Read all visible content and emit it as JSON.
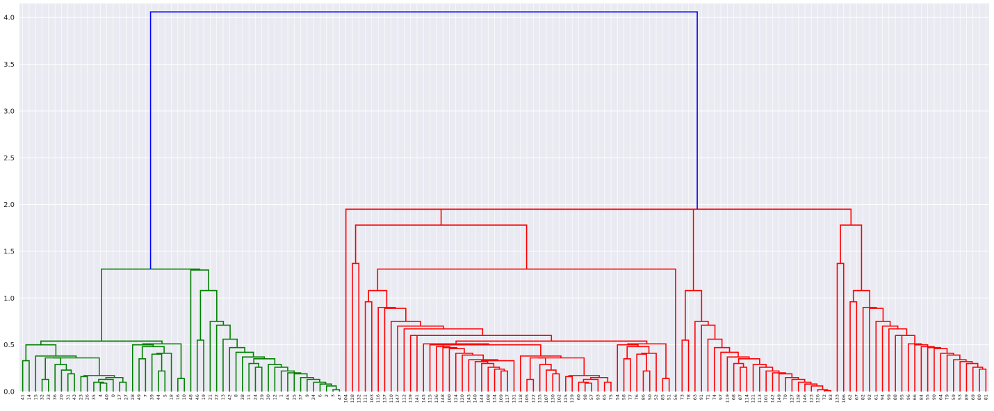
{
  "chart_data": {
    "type": "dendrogram",
    "title": "",
    "xlabel": "",
    "ylabel": "",
    "ylim": [
      0,
      4.15
    ],
    "yticks": [
      "0.0",
      "0.5",
      "1.0",
      "1.5",
      "2.0",
      "2.5",
      "3.0",
      "3.5",
      "4.0"
    ],
    "grid": true,
    "leaf_order": [
      "41",
      "14",
      "15",
      "32",
      "33",
      "36",
      "20",
      "31",
      "43",
      "23",
      "26",
      "35",
      "4",
      "40",
      "0",
      "17",
      "27",
      "28",
      "49",
      "7",
      "39",
      "44",
      "5",
      "18",
      "16",
      "10",
      "48",
      "46",
      "19",
      "21",
      "22",
      "13",
      "42",
      "8",
      "38",
      "11",
      "24",
      "29",
      "30",
      "12",
      "1",
      "45",
      "25",
      "37",
      "9",
      "34",
      "6",
      "2",
      "3",
      "47",
      "104",
      "128",
      "132",
      "111",
      "103",
      "116",
      "137",
      "110",
      "147",
      "112",
      "139",
      "141",
      "145",
      "115",
      "136",
      "148",
      "100",
      "124",
      "120",
      "143",
      "140",
      "144",
      "108",
      "134",
      "109",
      "117",
      "131",
      "118",
      "105",
      "122",
      "135",
      "107",
      "130",
      "102",
      "125",
      "129",
      "60",
      "98",
      "57",
      "93",
      "65",
      "75",
      "54",
      "58",
      "77",
      "76",
      "86",
      "50",
      "52",
      "85",
      "51",
      "56",
      "73",
      "78",
      "63",
      "91",
      "71",
      "74",
      "97",
      "119",
      "68",
      "87",
      "114",
      "121",
      "113",
      "101",
      "142",
      "149",
      "70",
      "127",
      "138",
      "146",
      "123",
      "126",
      "72",
      "83",
      "133",
      "106",
      "62",
      "67",
      "82",
      "92",
      "61",
      "94",
      "99",
      "88",
      "95",
      "96",
      "66",
      "84",
      "55",
      "90",
      "64",
      "79",
      "59",
      "53",
      "89",
      "69",
      "80",
      "81"
    ],
    "links": [
      {
        "pair": [
          0,
          1
        ],
        "height": 0.33,
        "group": "green"
      },
      {
        "pair": [
          2,
          3
        ],
        "height": 0.5,
        "group": "green"
      },
      {
        "pair": [
          4,
          5
        ],
        "height": 0.38,
        "group": "green"
      },
      {
        "pair": [
          6,
          7
        ],
        "height": 0.13,
        "group": "green"
      },
      {
        "pair": [
          8,
          9
        ],
        "height": 0.36,
        "group": "green"
      },
      {
        "pair": [
          10,
          11
        ],
        "height": 0.29,
        "group": "green"
      },
      {
        "pair": [
          12,
          13
        ],
        "height": 0.23,
        "group": "green"
      },
      {
        "pair": [
          14,
          15
        ],
        "height": 0.19,
        "group": "green"
      },
      {
        "pair": [
          16,
          17
        ],
        "height": 0.36,
        "group": "green"
      },
      {
        "pair": [
          18,
          19
        ],
        "height": 0.16,
        "group": "green"
      },
      {
        "pair": [
          20,
          21
        ],
        "height": 0.17,
        "group": "green"
      },
      {
        "pair": [
          22,
          23
        ],
        "height": 0.1,
        "group": "green"
      },
      {
        "pair": [
          24,
          25
        ],
        "height": 0.09,
        "group": "green"
      },
      {
        "pair": [
          26,
          27
        ],
        "height": 0.13,
        "group": "green"
      },
      {
        "pair": [
          28,
          29
        ],
        "height": 0.15,
        "group": "green"
      },
      {
        "pair": [
          30,
          31
        ],
        "height": 0.1,
        "group": "green"
      },
      {
        "pair": [
          32,
          33
        ],
        "height": 0.54,
        "group": "green"
      },
      {
        "pair": [
          34,
          35
        ],
        "height": 0.5,
        "group": "green"
      },
      {
        "pair": [
          36,
          37
        ],
        "height": 0.35,
        "group": "green"
      },
      {
        "pair": [
          38,
          39
        ],
        "height": 0.48,
        "group": "green"
      },
      {
        "pair": [
          40,
          41
        ],
        "height": 0.4,
        "group": "green"
      },
      {
        "pair": [
          42,
          43
        ],
        "height": 0.22,
        "group": "green"
      },
      {
        "pair": [
          44,
          45
        ],
        "height": 0.41,
        "group": "green"
      },
      {
        "pair": [
          46,
          47
        ],
        "height": 0.51,
        "group": "green"
      },
      {
        "pair": [
          48,
          49
        ],
        "height": 0.14,
        "group": "green"
      },
      {
        "pair": [
          50,
          51
        ],
        "height": 1.31,
        "group": "blue"
      },
      {
        "pair": [
          52,
          53
        ],
        "height": 4.06,
        "group": "blue"
      },
      {
        "pair": [
          54,
          55
        ],
        "height": 0.55,
        "group": "green"
      },
      {
        "pair": [
          56,
          57
        ],
        "height": 1.08,
        "group": "green"
      },
      {
        "pair": [
          58,
          59
        ],
        "height": 0.75,
        "group": "green"
      },
      {
        "pair": [
          60,
          61
        ],
        "height": 0.71,
        "group": "green"
      },
      {
        "pair": [
          62,
          63
        ],
        "height": 0.56,
        "group": "green"
      },
      {
        "pair": [
          64,
          65
        ],
        "height": 0.47,
        "group": "green"
      },
      {
        "pair": [
          66,
          67
        ],
        "height": 0.42,
        "group": "green"
      },
      {
        "pair": [
          68,
          69
        ],
        "height": 0.37,
        "group": "green"
      },
      {
        "pair": [
          70,
          71
        ],
        "height": 0.3,
        "group": "green"
      },
      {
        "pair": [
          72,
          73
        ],
        "height": 0.26,
        "group": "green"
      },
      {
        "pair": [
          74,
          75
        ],
        "height": 0.35,
        "group": "green"
      },
      {
        "pair": [
          76,
          77
        ],
        "height": 0.29,
        "group": "green"
      },
      {
        "pair": [
          78,
          79
        ],
        "height": 0.26,
        "group": "green"
      },
      {
        "pair": [
          80,
          81
        ],
        "height": 0.22,
        "group": "green"
      },
      {
        "pair": [
          82,
          83
        ],
        "height": 0.2,
        "group": "green"
      },
      {
        "pair": [
          84,
          85
        ],
        "height": 0.19,
        "group": "green"
      },
      {
        "pair": [
          86,
          87
        ],
        "height": 0.15,
        "group": "green"
      },
      {
        "pair": [
          88,
          89
        ],
        "height": 0.13,
        "group": "green"
      },
      {
        "pair": [
          90,
          91
        ],
        "height": 0.1,
        "group": "green"
      },
      {
        "pair": [
          92,
          93
        ],
        "height": 0.08,
        "group": "green"
      },
      {
        "pair": [
          94,
          95
        ],
        "height": 0.06,
        "group": "green"
      },
      {
        "pair": [
          96,
          97
        ],
        "height": 0.02,
        "group": "green"
      },
      {
        "pair": [
          98,
          99
        ],
        "height": 0.01,
        "group": "green"
      },
      {
        "pair": [
          100,
          101
        ],
        "height": 1.96,
        "group": "red"
      },
      {
        "pair": [
          102,
          103
        ],
        "height": 1.37,
        "group": "red"
      },
      {
        "pair": [
          104,
          105
        ],
        "height": 1.78,
        "group": "red"
      },
      {
        "pair": [
          106,
          107
        ],
        "height": 0.96,
        "group": "red"
      },
      {
        "pair": [
          108,
          109
        ],
        "height": 1.08,
        "group": "red"
      },
      {
        "pair": [
          110,
          111
        ],
        "height": 0.9,
        "group": "red"
      },
      {
        "pair": [
          112,
          113
        ],
        "height": 0.89,
        "group": "red"
      },
      {
        "pair": [
          114,
          115
        ],
        "height": 0.75,
        "group": "red"
      },
      {
        "pair": [
          116,
          117
        ],
        "height": 0.7,
        "group": "red"
      },
      {
        "pair": [
          118,
          119
        ],
        "height": 0.67,
        "group": "red"
      },
      {
        "pair": [
          120,
          121
        ],
        "height": 0.6,
        "group": "red"
      },
      {
        "pair": [
          122,
          123
        ],
        "height": 0.6,
        "group": "red"
      },
      {
        "pair": [
          124,
          125
        ],
        "height": 0.51,
        "group": "red"
      },
      {
        "pair": [
          126,
          127
        ],
        "height": 0.5,
        "group": "red"
      },
      {
        "pair": [
          128,
          129
        ],
        "height": 0.48,
        "group": "red"
      },
      {
        "pair": [
          130,
          131
        ],
        "height": 0.47,
        "group": "red"
      },
      {
        "pair": [
          132,
          133
        ],
        "height": 0.46,
        "group": "red"
      },
      {
        "pair": [
          134,
          135
        ],
        "height": 0.41,
        "group": "red"
      },
      {
        "pair": [
          136,
          137
        ],
        "height": 0.39,
        "group": "red"
      },
      {
        "pair": [
          138,
          139
        ],
        "height": 0.34,
        "group": "red"
      },
      {
        "pair": [
          140,
          141
        ],
        "height": 0.32,
        "group": "red"
      },
      {
        "pair": [
          142,
          143
        ],
        "height": 0.3,
        "group": "red"
      },
      {
        "pair": [
          144,
          145
        ],
        "height": 0.26,
        "group": "red"
      },
      {
        "pair": [
          146,
          147
        ],
        "height": 0.24,
        "group": "red"
      },
      {
        "pair": [
          148,
          149
        ],
        "height": 0.22,
        "group": "red"
      }
    ],
    "cluster_spans": [
      {
        "group": "green",
        "leaves": [
          "41",
          "47"
        ],
        "height": 1.31
      },
      {
        "group": "red",
        "leaves": [
          "104",
          "81"
        ],
        "height": 1.96
      },
      {
        "group": "blue",
        "leaves": [
          "41",
          "81"
        ],
        "height": 4.06
      }
    ],
    "colors": {
      "green": "#008000",
      "red": "#ff0000",
      "blue": "#0000ff",
      "plot_bg": "#eaeaf2",
      "grid": "#ffffff"
    }
  }
}
